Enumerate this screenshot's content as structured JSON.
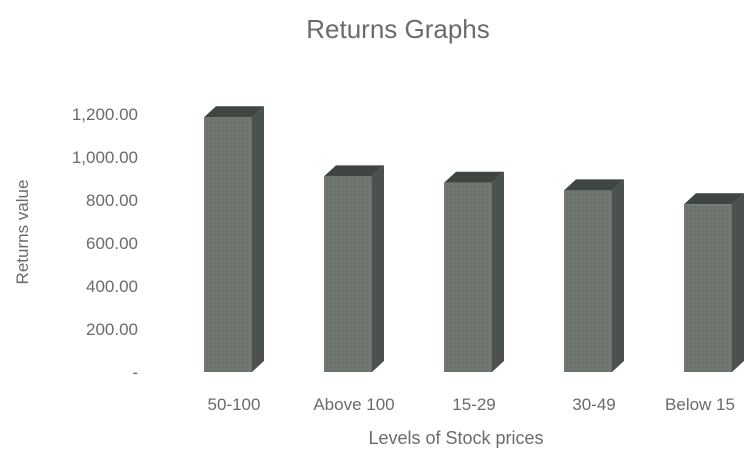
{
  "chart_data": {
    "type": "bar",
    "title": "Returns Graphs",
    "xlabel": "Levels of Stock prices",
    "ylabel": "Returns value",
    "categories": [
      "50-100",
      "Above 100",
      "15-29",
      "30-49",
      "Below 15"
    ],
    "values": [
      1185,
      910,
      880,
      845,
      780
    ],
    "ylim": [
      0,
      1200
    ],
    "yticks": [
      0,
      200,
      400,
      600,
      800,
      1000,
      1200
    ],
    "ytick_labels": [
      "-",
      "200.00",
      "400.00",
      "600.00",
      "800.00",
      "1,000.00",
      "1,200.00"
    ],
    "grid": false,
    "legend": "none",
    "style": "3d-column",
    "colors": {
      "bar_front": "#6f7670",
      "bar_side": "#4b514c",
      "bar_top": "#3f4540",
      "text": "#6b6b6b"
    }
  }
}
